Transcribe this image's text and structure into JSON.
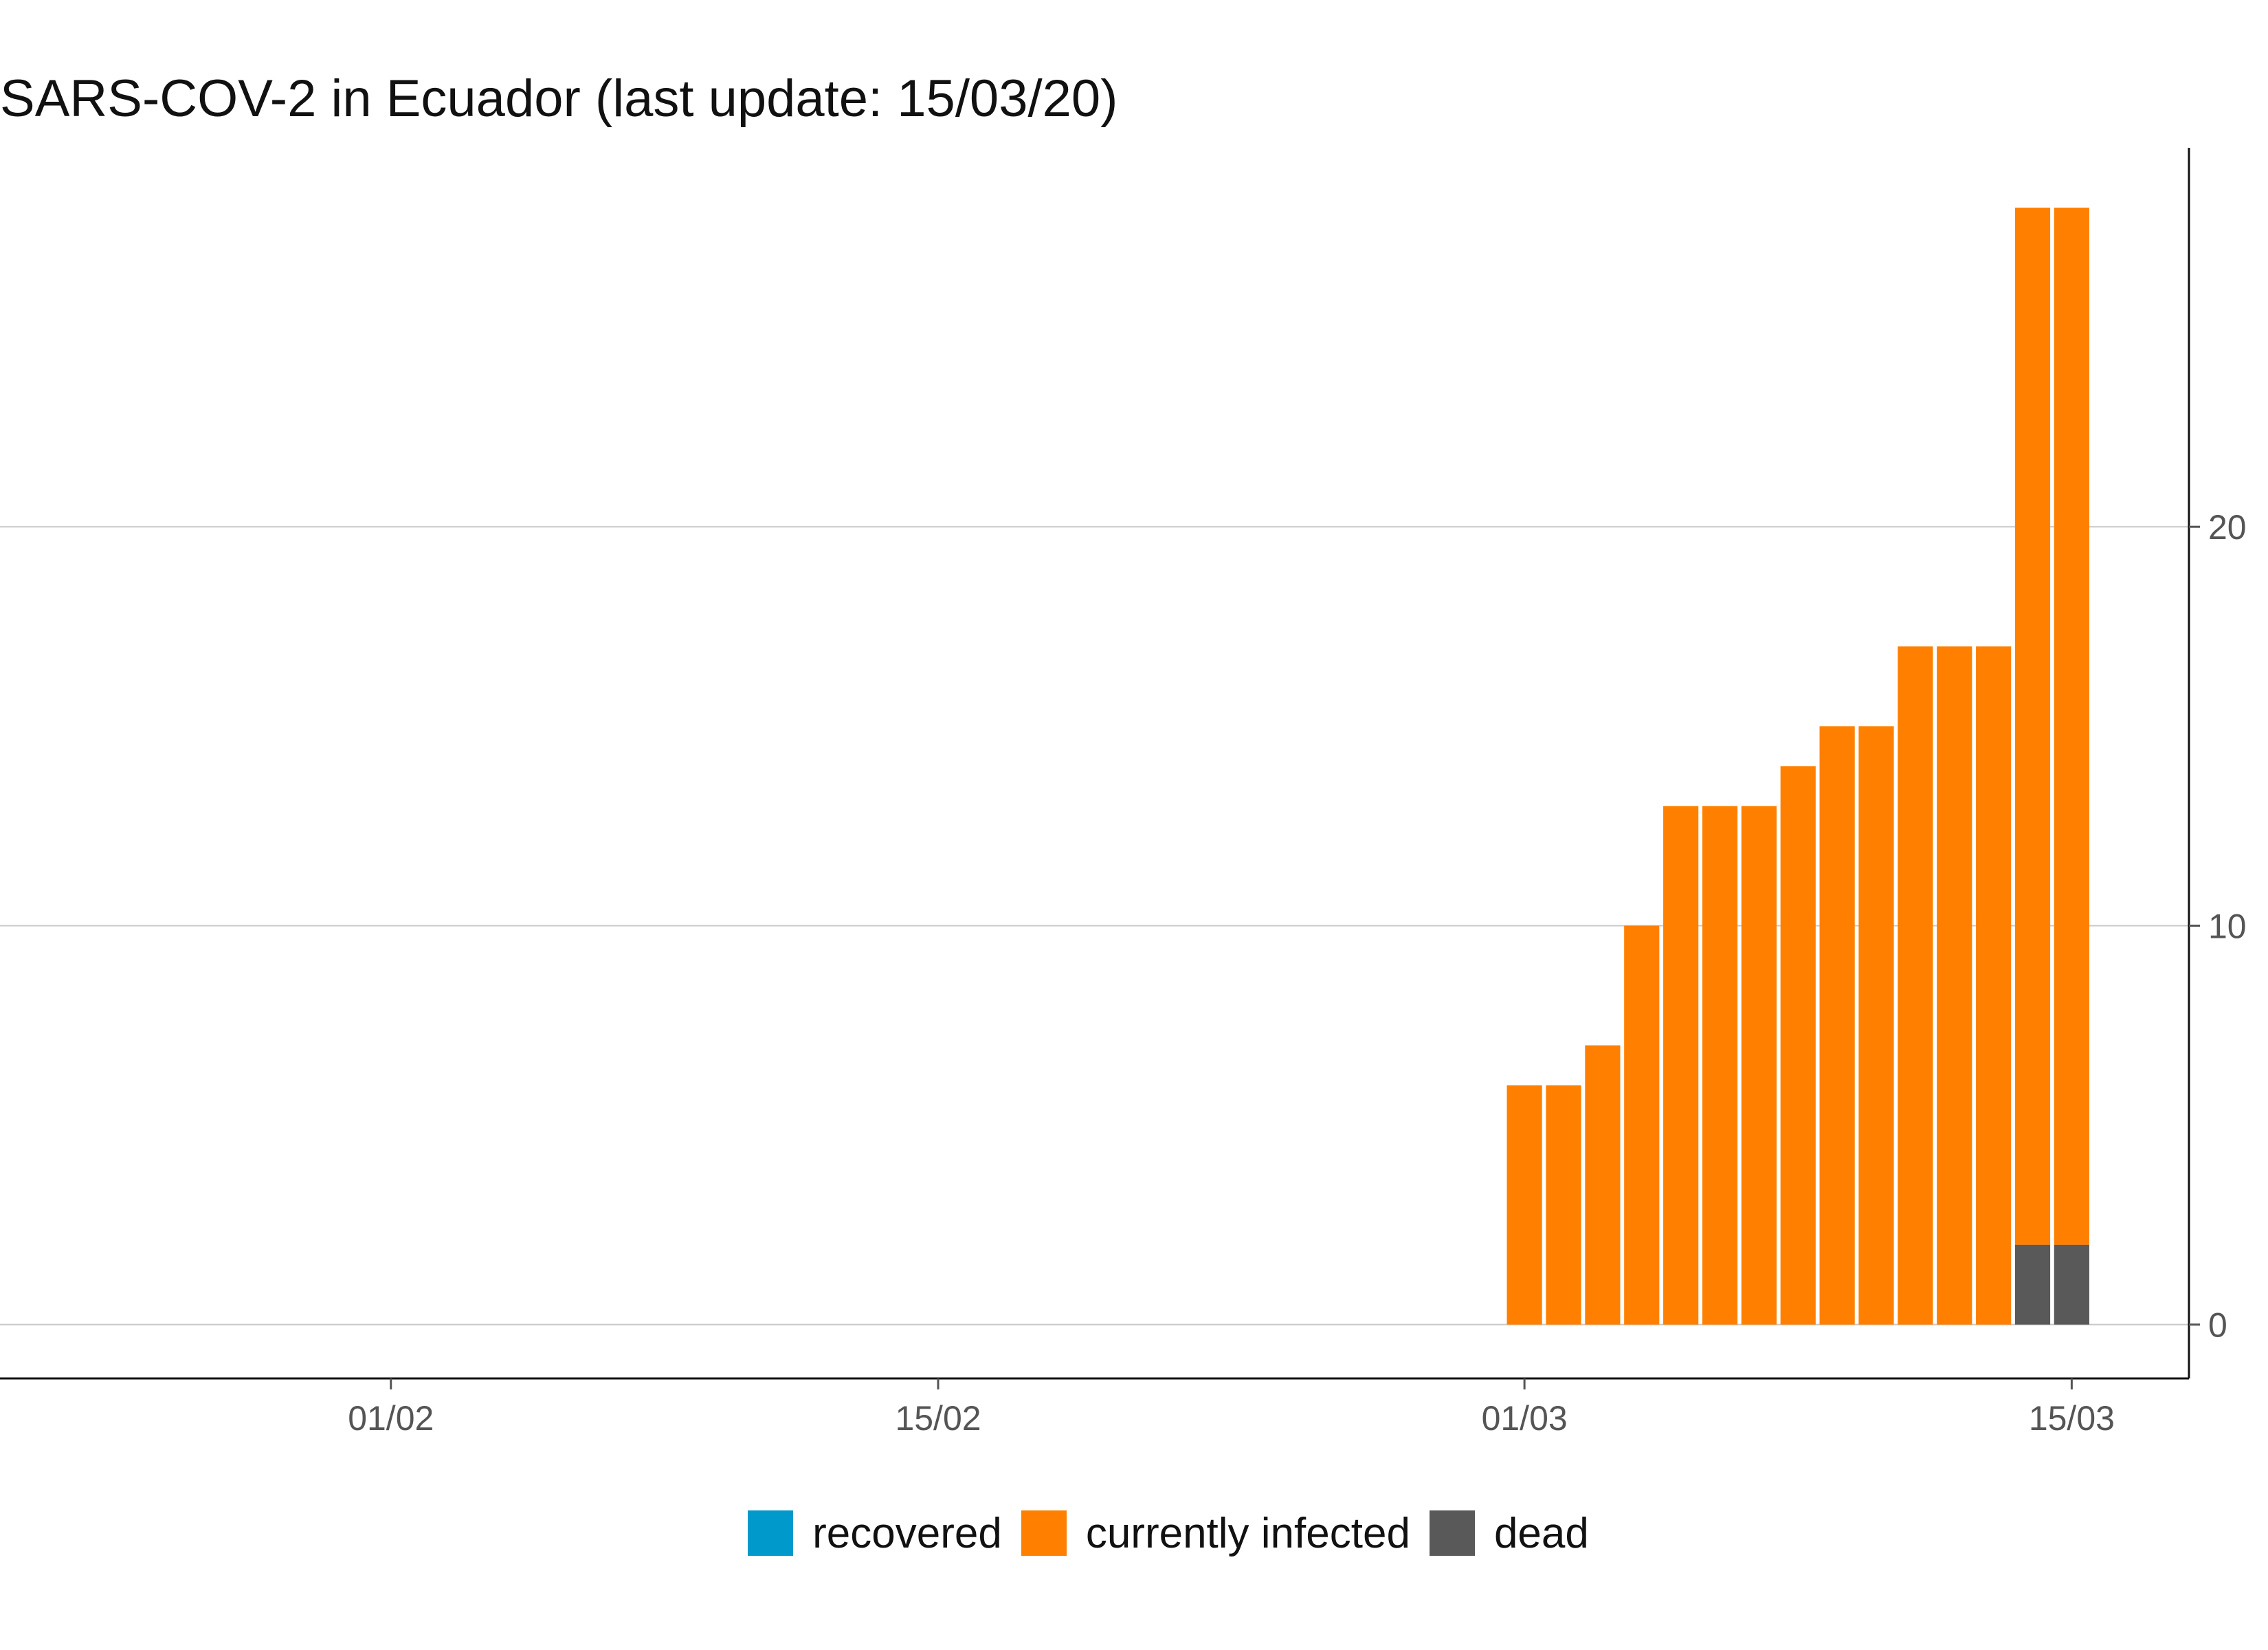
{
  "chart_data": {
    "type": "bar",
    "stacked": true,
    "title": "SARS-COV-2 in Ecuador (last update: 15/03/20)",
    "xlabel": "",
    "ylabel": "",
    "x_axis": {
      "type": "date",
      "range": [
        "2020-01-22",
        "2020-03-18"
      ],
      "ticks": [
        {
          "date": "2020-02-01",
          "label": "01/02"
        },
        {
          "date": "2020-02-15",
          "label": "15/02"
        },
        {
          "date": "2020-03-01",
          "label": "01/03"
        },
        {
          "date": "2020-03-15",
          "label": "15/03"
        }
      ]
    },
    "y_axis": {
      "position": "right",
      "ylim": [
        -1.35,
        29.5
      ],
      "ticks": [
        0,
        10,
        20
      ]
    },
    "grid": "horizontal",
    "legend_position": "bottom",
    "categories": [
      "2020-03-01",
      "2020-03-02",
      "2020-03-03",
      "2020-03-04",
      "2020-03-05",
      "2020-03-06",
      "2020-03-07",
      "2020-03-08",
      "2020-03-09",
      "2020-03-10",
      "2020-03-11",
      "2020-03-12",
      "2020-03-13",
      "2020-03-14",
      "2020-03-15"
    ],
    "series": [
      {
        "name": "recovered",
        "color": "#0099cc",
        "values": [
          0,
          0,
          0,
          0,
          0,
          0,
          0,
          0,
          0,
          0,
          0,
          0,
          0,
          0,
          0
        ]
      },
      {
        "name": "currently infected",
        "color": "#ff8000",
        "values": [
          6,
          6,
          7,
          10,
          13,
          13,
          13,
          14,
          15,
          15,
          17,
          17,
          17,
          26,
          26
        ]
      },
      {
        "name": "dead",
        "color": "#595959",
        "values": [
          0,
          0,
          0,
          0,
          0,
          0,
          0,
          0,
          0,
          0,
          0,
          0,
          0,
          2,
          2
        ]
      }
    ]
  }
}
